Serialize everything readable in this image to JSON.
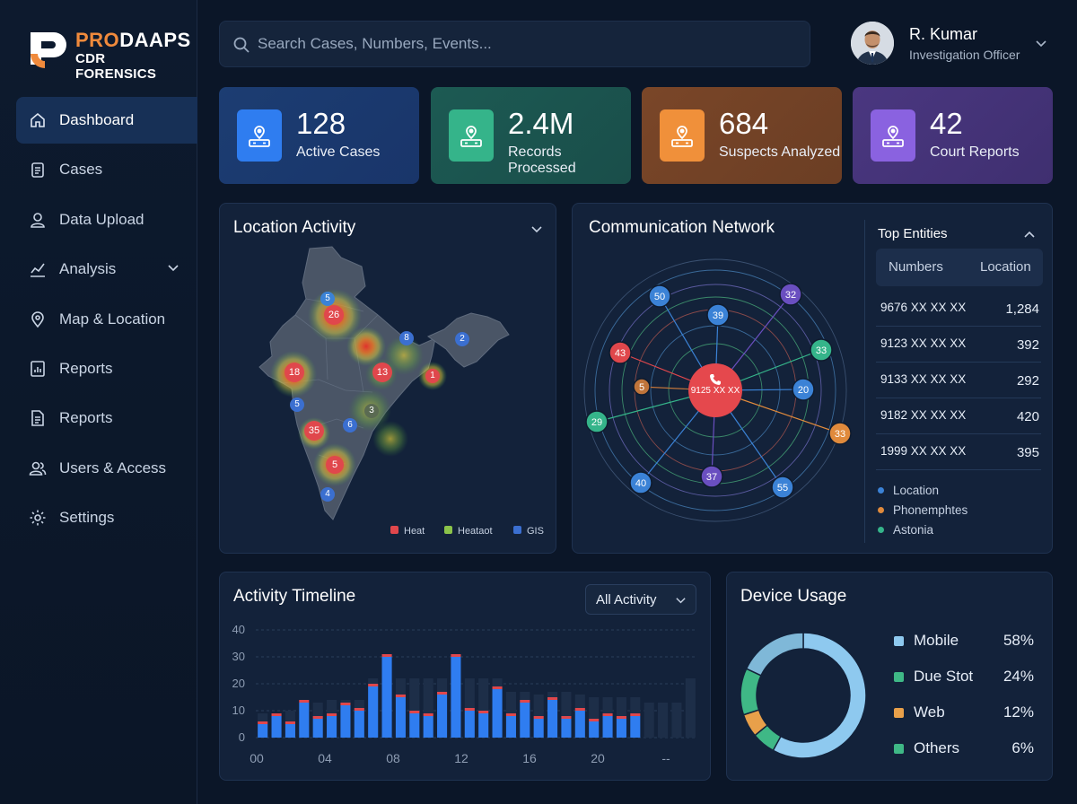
{
  "brand": {
    "name_accent": "PRO",
    "name_rest": "DAAPS",
    "subtitle": "CDR FORENSICS",
    "accent_color": "#f08a3c"
  },
  "sidebar": {
    "items": [
      {
        "label": "Dashboard",
        "icon": "home-icon",
        "active": true
      },
      {
        "label": "Cases",
        "icon": "clipboard-icon"
      },
      {
        "label": "Data Upload",
        "icon": "user-icon"
      },
      {
        "label": "Analysis",
        "icon": "chart-line-icon",
        "expandable": true
      },
      {
        "label": "Map & Location",
        "icon": "map-pin-icon"
      },
      {
        "label": "Reports",
        "icon": "report-chart-icon"
      },
      {
        "label": "Reports",
        "icon": "document-icon"
      },
      {
        "label": "Users & Access",
        "icon": "users-icon"
      },
      {
        "label": "Settings",
        "icon": "gear-icon"
      }
    ]
  },
  "search": {
    "placeholder": "Search Cases, Numbers, Events..."
  },
  "user": {
    "name": "R. Kumar",
    "role": "Investigation Officer"
  },
  "stats": [
    {
      "value": "128",
      "label": "Active Cases",
      "color": "#2f7df0"
    },
    {
      "value": "2.4M",
      "label": "Records Processed",
      "color": "#35b48a"
    },
    {
      "value": "684",
      "label": "Suspects Analyzed",
      "color": "#f0903a"
    },
    {
      "value": "42",
      "label": "Court Reports",
      "color": "#8a62e0"
    }
  ],
  "location": {
    "title": "Location Activity",
    "markers": [
      {
        "label": "5",
        "color": "#3b82d6"
      },
      {
        "label": "26",
        "color": "#e0474c"
      },
      {
        "label": "8",
        "color": "#3b6fd0"
      },
      {
        "label": "2",
        "color": "#3b6fd0"
      },
      {
        "label": "18",
        "color": "#e0474c"
      },
      {
        "label": "13",
        "color": "#e0474c"
      },
      {
        "label": "1",
        "color": "#e0474c"
      },
      {
        "label": "5",
        "color": "#3b6fd0"
      },
      {
        "label": "6",
        "color": "#3b6fd0"
      },
      {
        "label": "3",
        "color": "#5a6a52"
      },
      {
        "label": "35",
        "color": "#e0474c"
      },
      {
        "label": "5",
        "color": "#e0474c"
      },
      {
        "label": "4",
        "color": "#3b6fd0"
      }
    ],
    "legend": [
      {
        "label": "Heat",
        "color": "#e0474c"
      },
      {
        "label": "Heataot",
        "color": "#8bc34a"
      },
      {
        "label": "GIS",
        "color": "#3b6fd0"
      }
    ]
  },
  "network": {
    "title": "Communication Network",
    "center_label": "9125 XX XX",
    "nodes": [
      {
        "label": "50",
        "color": "#3b82d6"
      },
      {
        "label": "39",
        "color": "#3b82d6"
      },
      {
        "label": "32",
        "color": "#6a4fc0"
      },
      {
        "label": "43",
        "color": "#e0474c"
      },
      {
        "label": "33",
        "color": "#35b48a"
      },
      {
        "label": "5",
        "color": "#c0743a"
      },
      {
        "label": "20",
        "color": "#3b82d6"
      },
      {
        "label": "29",
        "color": "#35b48a"
      },
      {
        "label": "33",
        "color": "#e08a3c"
      },
      {
        "label": "37",
        "color": "#6a4fc0"
      },
      {
        "label": "40",
        "color": "#3b82d6"
      },
      {
        "label": "55",
        "color": "#3b82d6"
      }
    ],
    "top_entities": {
      "title": "Top Entities",
      "columns": [
        "Numbers",
        "Location"
      ],
      "rows": [
        {
          "number": "9676 XX XX XX",
          "value": "1,284"
        },
        {
          "number": "9123 XX XX XX",
          "value": "392"
        },
        {
          "number": "9133 XX XX XX",
          "value": "292"
        },
        {
          "number": "9182 XX XX XX",
          "value": "420"
        },
        {
          "number": "1999 XX XX XX",
          "value": "395"
        }
      ],
      "legend": [
        {
          "label": "Location",
          "color": "#3b82d6"
        },
        {
          "label": "Phonemphtes",
          "color": "#e08a3c"
        },
        {
          "label": "Astonia",
          "color": "#35b48a"
        }
      ]
    }
  },
  "timeline": {
    "title": "Activity Timeline",
    "filter": "All Activity"
  },
  "device": {
    "title": "Device Usage",
    "items": [
      {
        "label": "Mobile",
        "value": "58%",
        "color": "#8ec9ef"
      },
      {
        "label": "Due Stot",
        "value": "24%",
        "color": "#3fb886"
      },
      {
        "label": "Web",
        "value": "12%",
        "color": "#e8a04a"
      },
      {
        "label": "Others",
        "value": "6%",
        "color": "#3fb886"
      }
    ]
  },
  "chart_data": {
    "type": "bar",
    "title": "Activity Timeline",
    "x_tick_labels": [
      "00",
      "04",
      "08",
      "12",
      "16",
      "20",
      "--"
    ],
    "ylim": [
      0,
      40
    ],
    "y_ticks": [
      0,
      10,
      20,
      30,
      40
    ],
    "grid": true,
    "series": [
      {
        "values": [
          5,
          8,
          5,
          13,
          7,
          8,
          12,
          10,
          19,
          30,
          15,
          9,
          8,
          16,
          30,
          10,
          9,
          18,
          8,
          13,
          7,
          14,
          7,
          10,
          6,
          8,
          7,
          8,
          0,
          0,
          0,
          0
        ]
      },
      {
        "values": [
          9,
          9,
          10,
          13,
          13,
          14,
          14,
          14,
          22,
          31,
          22,
          22,
          22,
          22,
          31,
          22,
          22,
          22,
          17,
          17,
          16,
          17,
          17,
          16,
          15,
          15,
          15,
          15,
          13,
          13,
          13,
          22
        ]
      }
    ]
  }
}
